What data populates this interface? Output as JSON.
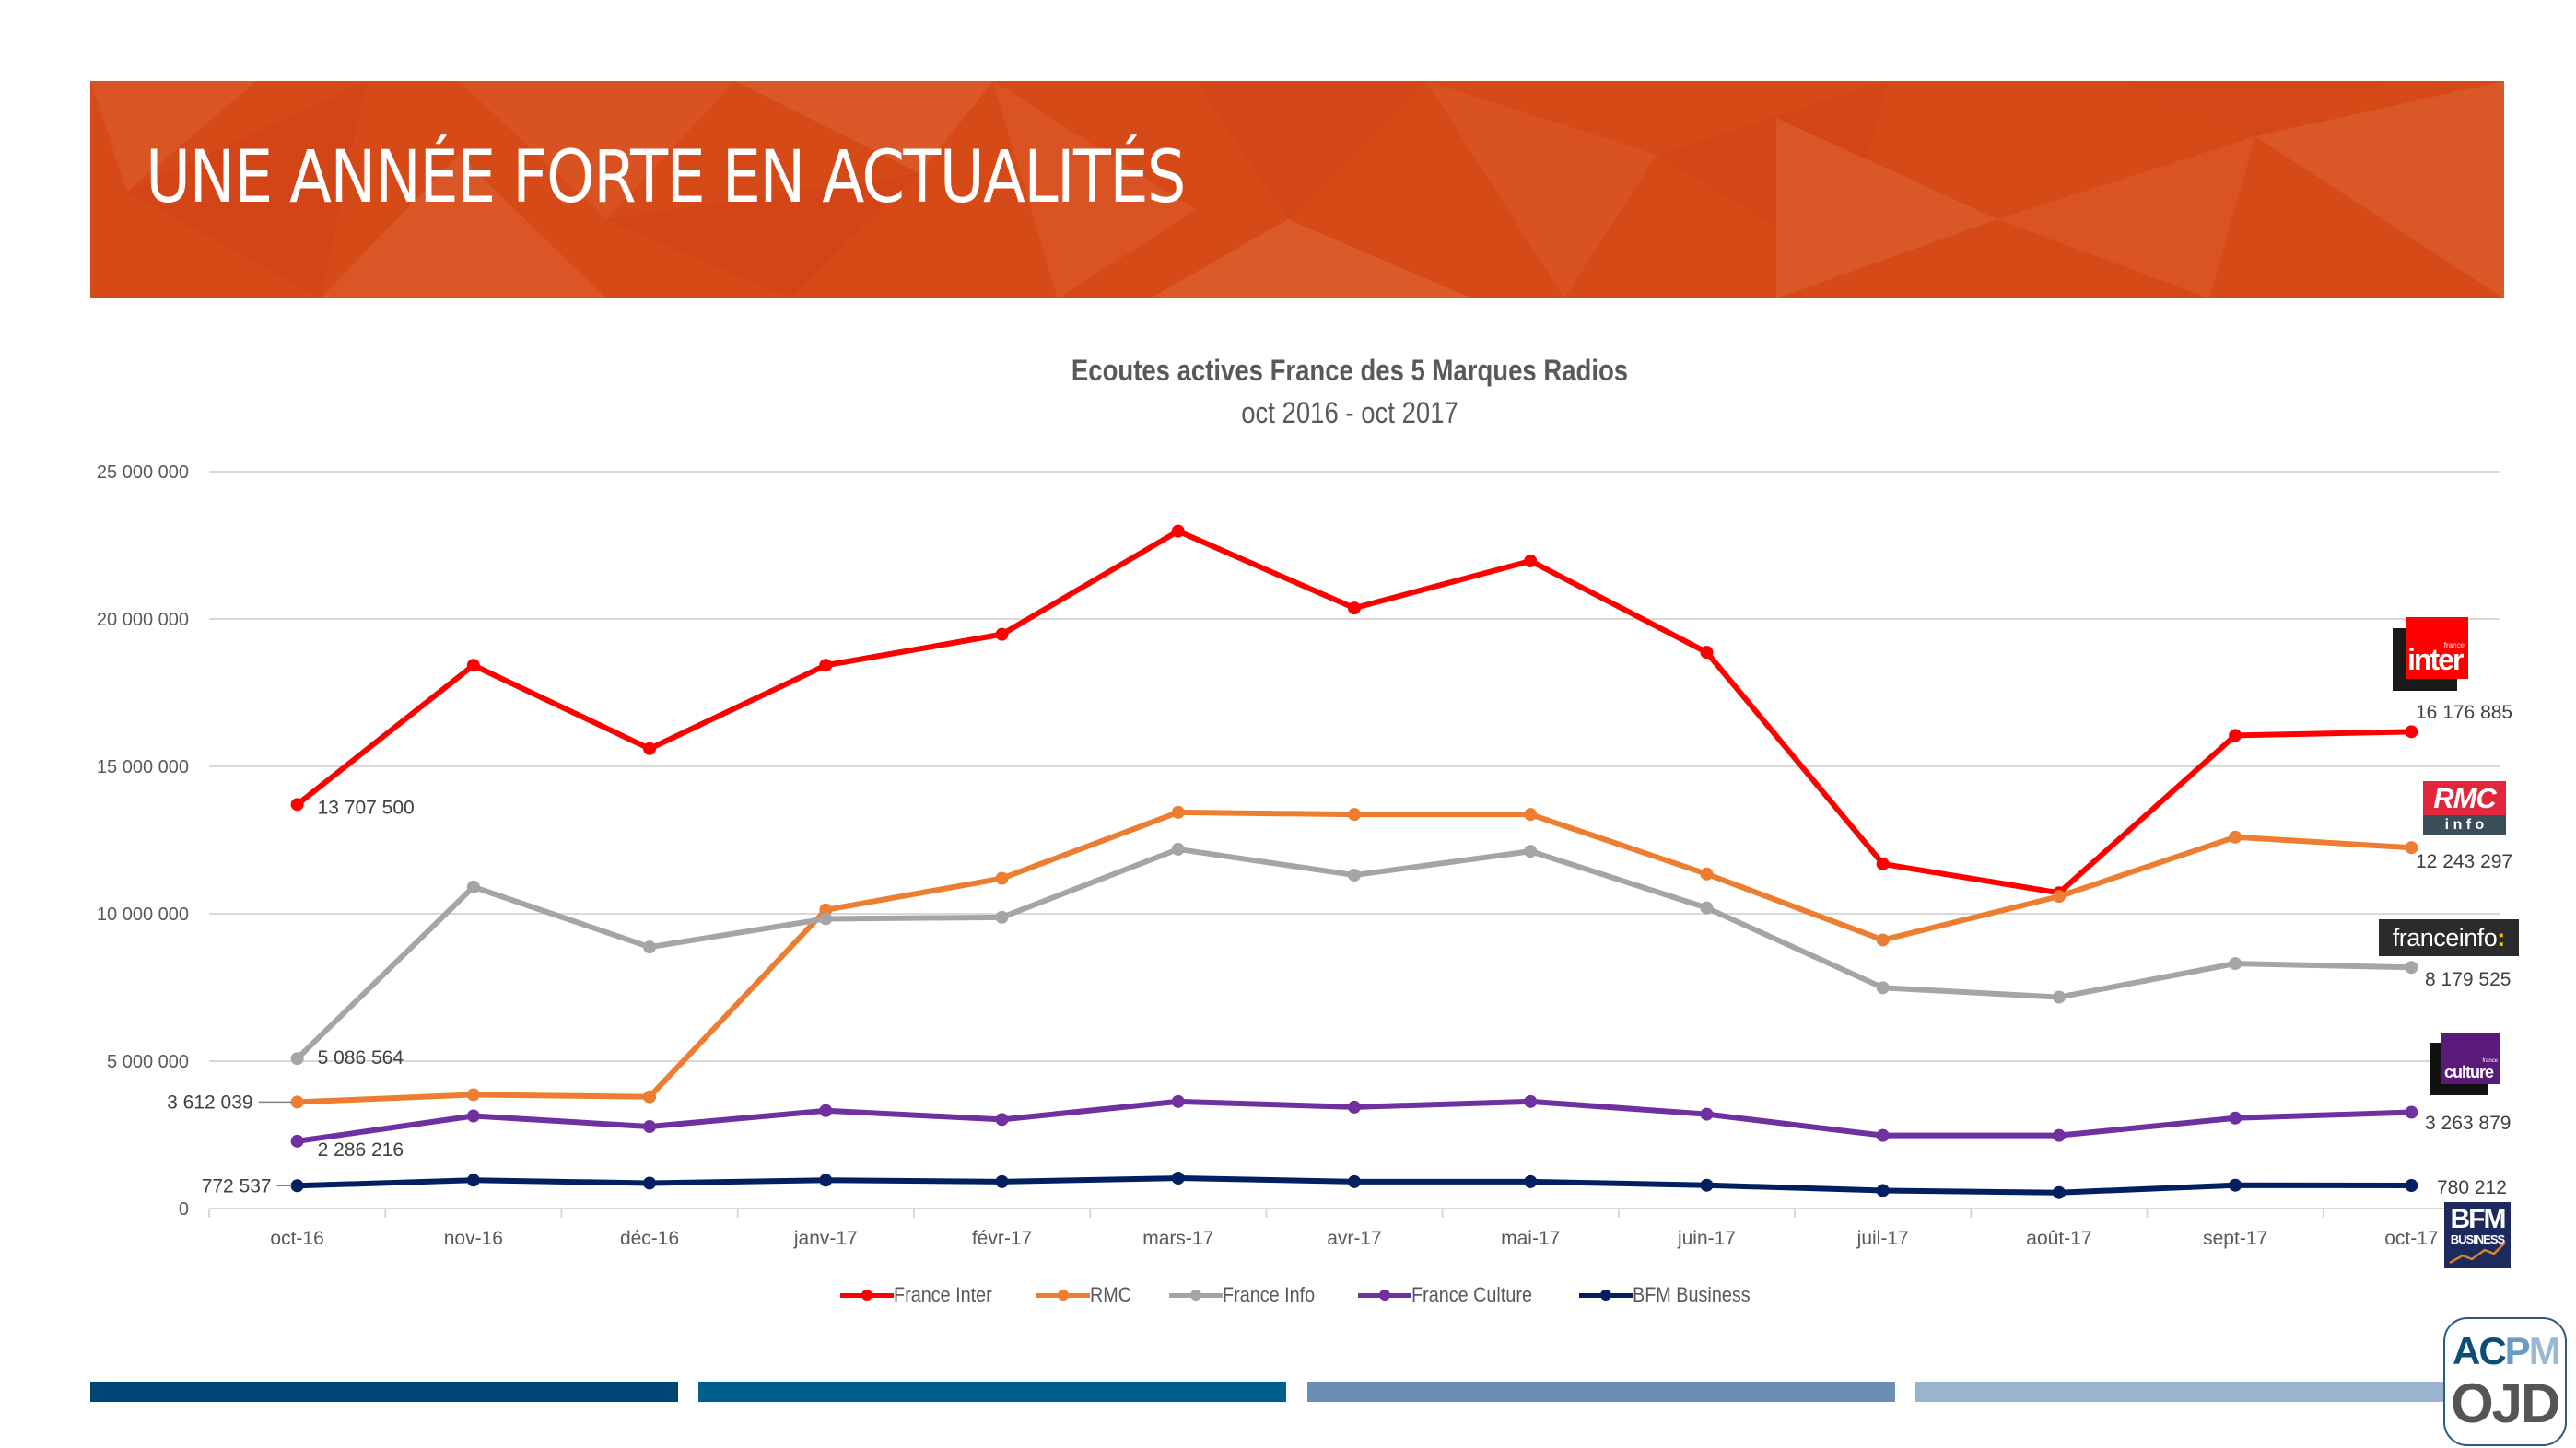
{
  "header": {
    "title": "UNE ANNÉE FORTE EN ACTUALITÉS",
    "banner_color": "#d64a18"
  },
  "chart_data": {
    "type": "line",
    "title": "Ecoutes actives France des 5 Marques Radios",
    "subtitle": "oct 2016 - oct 2017",
    "xlabel": "",
    "ylabel": "",
    "ylim": [
      0,
      25000000
    ],
    "yticks": [
      0,
      5000000,
      10000000,
      15000000,
      20000000,
      25000000
    ],
    "ytick_labels": [
      "0",
      "5 000 000",
      "10 000 000",
      "15 000 000",
      "20 000 000",
      "25 000 000"
    ],
    "grid": true,
    "legend_position": "bottom",
    "categories": [
      "oct-16",
      "nov-16",
      "déc-16",
      "janv-17",
      "févr-17",
      "mars-17",
      "avr-17",
      "mai-17",
      "juin-17",
      "juil-17",
      "août-17",
      "sept-17",
      "oct-17"
    ],
    "series": [
      {
        "name": "France Inter",
        "color": "#ff0000",
        "values": [
          13707500,
          18430000,
          15600000,
          18430000,
          19480000,
          22980000,
          20370000,
          21970000,
          18870000,
          11690000,
          10710000,
          16050000,
          16176885
        ],
        "start_label": "13 707 500",
        "end_label": "16 176 885"
      },
      {
        "name": "RMC",
        "color": "#ed7d31",
        "values": [
          3612039,
          3860000,
          3790000,
          10130000,
          11200000,
          13440000,
          13370000,
          13370000,
          11350000,
          9110000,
          10590000,
          12600000,
          12243297
        ],
        "start_label": "3 612 039",
        "end_label": "12 243 297"
      },
      {
        "name": "France Info",
        "color": "#a5a5a5",
        "values": [
          5086564,
          10910000,
          8870000,
          9830000,
          9880000,
          12190000,
          11310000,
          12120000,
          10200000,
          7490000,
          7170000,
          8310000,
          8179525
        ],
        "start_label": "5 086 564",
        "end_label": "8 179 525"
      },
      {
        "name": "France Culture",
        "color": "#7030a0",
        "values": [
          2286216,
          3140000,
          2780000,
          3320000,
          3020000,
          3630000,
          3440000,
          3630000,
          3200000,
          2480000,
          2480000,
          3070000,
          3263879
        ],
        "start_label": "2 286 216",
        "end_label": "3 263 879"
      },
      {
        "name": "BFM Business",
        "color": "#002060",
        "values": [
          772537,
          960000,
          860000,
          960000,
          910000,
          1030000,
          910000,
          910000,
          790000,
          610000,
          540000,
          790000,
          780212
        ],
        "start_label": "772 537",
        "end_label": "780 212"
      }
    ]
  },
  "logos": {
    "france_inter": {
      "small": "france",
      "main": "inter"
    },
    "rmc": {
      "top": "RMC",
      "bottom": "i n f o"
    },
    "franceinfo": {
      "text": "franceinfo",
      "colon": ":"
    },
    "france_culture": {
      "small": "france",
      "main": "culture"
    },
    "bfm": {
      "top": "BFM",
      "bottom": "BUSINESS"
    },
    "acpm": {
      "top_a": "AC",
      "top_b": "P",
      "top_c": "M",
      "bottom": "OJD"
    }
  },
  "footer_bars": [
    "#004573",
    "#00608c",
    "#6a8fb2",
    "#9cb3cd"
  ]
}
